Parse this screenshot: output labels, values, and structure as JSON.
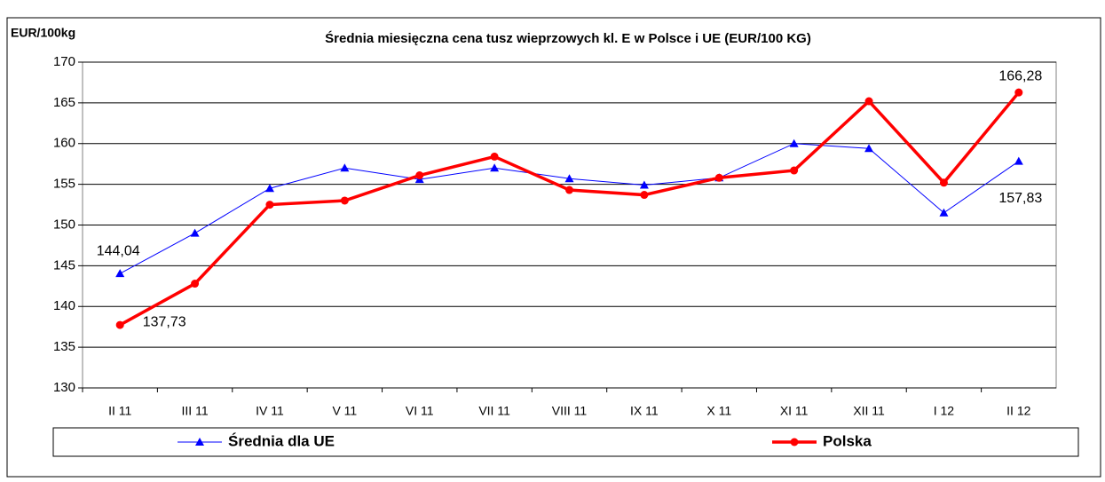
{
  "chart_data": {
    "type": "line",
    "title": "Średnia miesięczna cena tusz wieprzowych kl. E w  Polsce i UE (EUR/100 KG)",
    "y_label": "EUR/100kg",
    "categories": [
      "II 11",
      "III 11",
      "IV 11",
      "V 11",
      "VI 11",
      "VII 11",
      "VIII 11",
      "IX 11",
      "X 11",
      "XI 11",
      "XII 11",
      "I 12",
      "II 12"
    ],
    "series": [
      {
        "name": "Średnia dla  UE",
        "color": "#0000ff",
        "marker": "triangle",
        "values": [
          144.04,
          149.0,
          154.5,
          157.0,
          155.6,
          157.0,
          155.7,
          154.9,
          155.8,
          160.0,
          159.4,
          151.5,
          157.83
        ],
        "value_labels": [
          "144,04",
          null,
          null,
          null,
          null,
          null,
          null,
          null,
          null,
          null,
          null,
          null,
          "157,83"
        ]
      },
      {
        "name": "Polska",
        "color": "#ff0000",
        "marker": "circle",
        "values": [
          137.73,
          142.8,
          152.5,
          153.0,
          156.1,
          158.4,
          154.3,
          153.7,
          155.8,
          156.7,
          165.2,
          155.2,
          166.28
        ],
        "value_labels": [
          "137,73",
          null,
          null,
          null,
          null,
          null,
          null,
          null,
          null,
          null,
          null,
          null,
          "166,28"
        ]
      }
    ],
    "ylim": [
      130,
      170
    ],
    "yticks": [
      130,
      135,
      140,
      145,
      150,
      155,
      160,
      165,
      170
    ],
    "grid": true
  }
}
